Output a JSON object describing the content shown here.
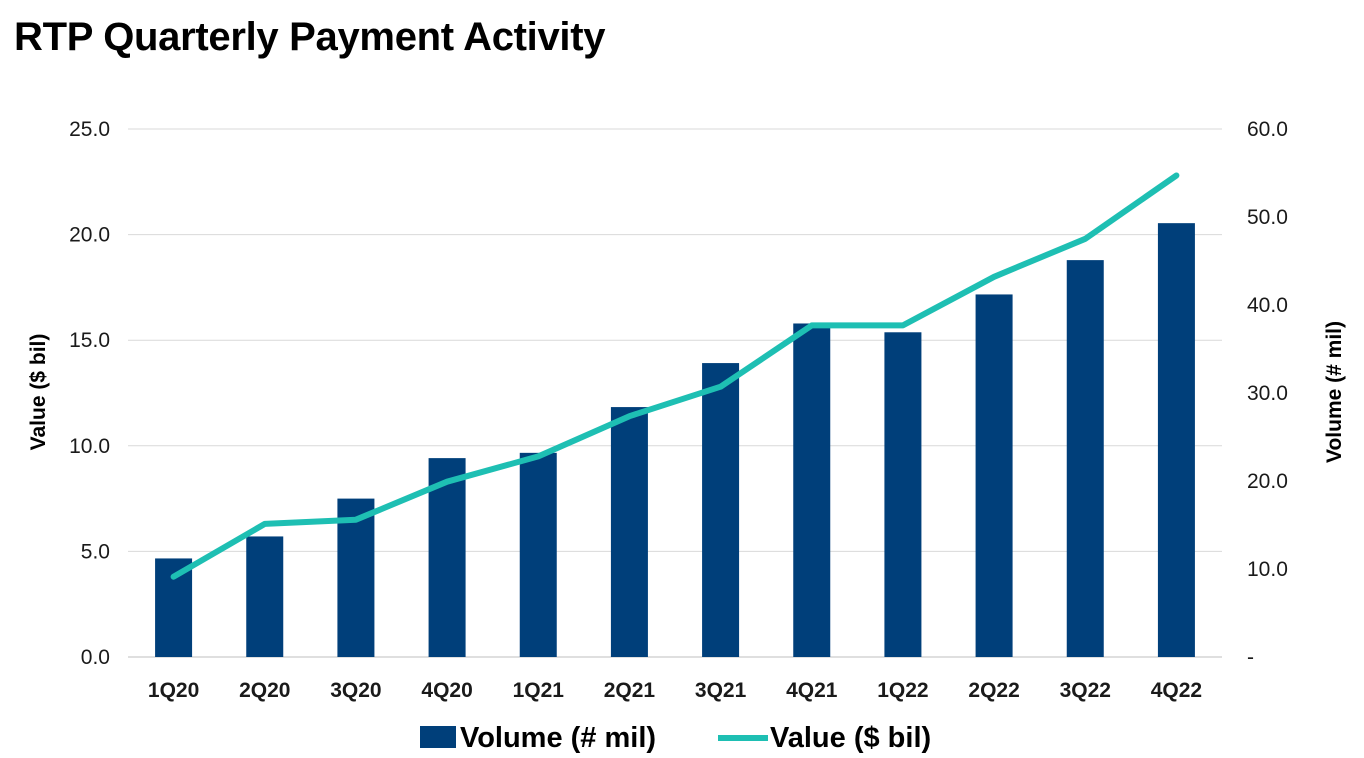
{
  "chart_data": {
    "type": "bar",
    "title": "RTP Quarterly Payment Activity",
    "categories": [
      "1Q20",
      "2Q20",
      "3Q20",
      "4Q20",
      "1Q21",
      "2Q21",
      "3Q21",
      "4Q21",
      "1Q22",
      "2Q22",
      "3Q22",
      "4Q22"
    ],
    "series": [
      {
        "name": "Volume (# mil)",
        "type": "bar",
        "axis": "right",
        "color": "#003f7a",
        "values": [
          11.2,
          13.7,
          18.0,
          22.6,
          23.2,
          28.4,
          33.4,
          37.9,
          36.9,
          41.2,
          45.1,
          49.3
        ]
      },
      {
        "name": "Value ($ bil)",
        "type": "line",
        "axis": "left",
        "color": "#1ebfb3",
        "values": [
          3.8,
          6.3,
          6.5,
          8.3,
          9.5,
          11.4,
          12.8,
          15.7,
          15.7,
          18.0,
          19.8,
          22.8
        ]
      }
    ],
    "left_axis": {
      "label": "Value ($ bil)",
      "min": 0,
      "max": 25,
      "step": 5,
      "ticks": [
        "0.0",
        "5.0",
        "10.0",
        "15.0",
        "20.0",
        "25.0"
      ]
    },
    "right_axis": {
      "label": "Volume (# mil)",
      "min": 0,
      "max": 60,
      "step": 10,
      "ticks": [
        "-",
        "10.0",
        "20.0",
        "30.0",
        "40.0",
        "50.0",
        "60.0"
      ]
    },
    "grid": true,
    "legend_position": "bottom"
  }
}
